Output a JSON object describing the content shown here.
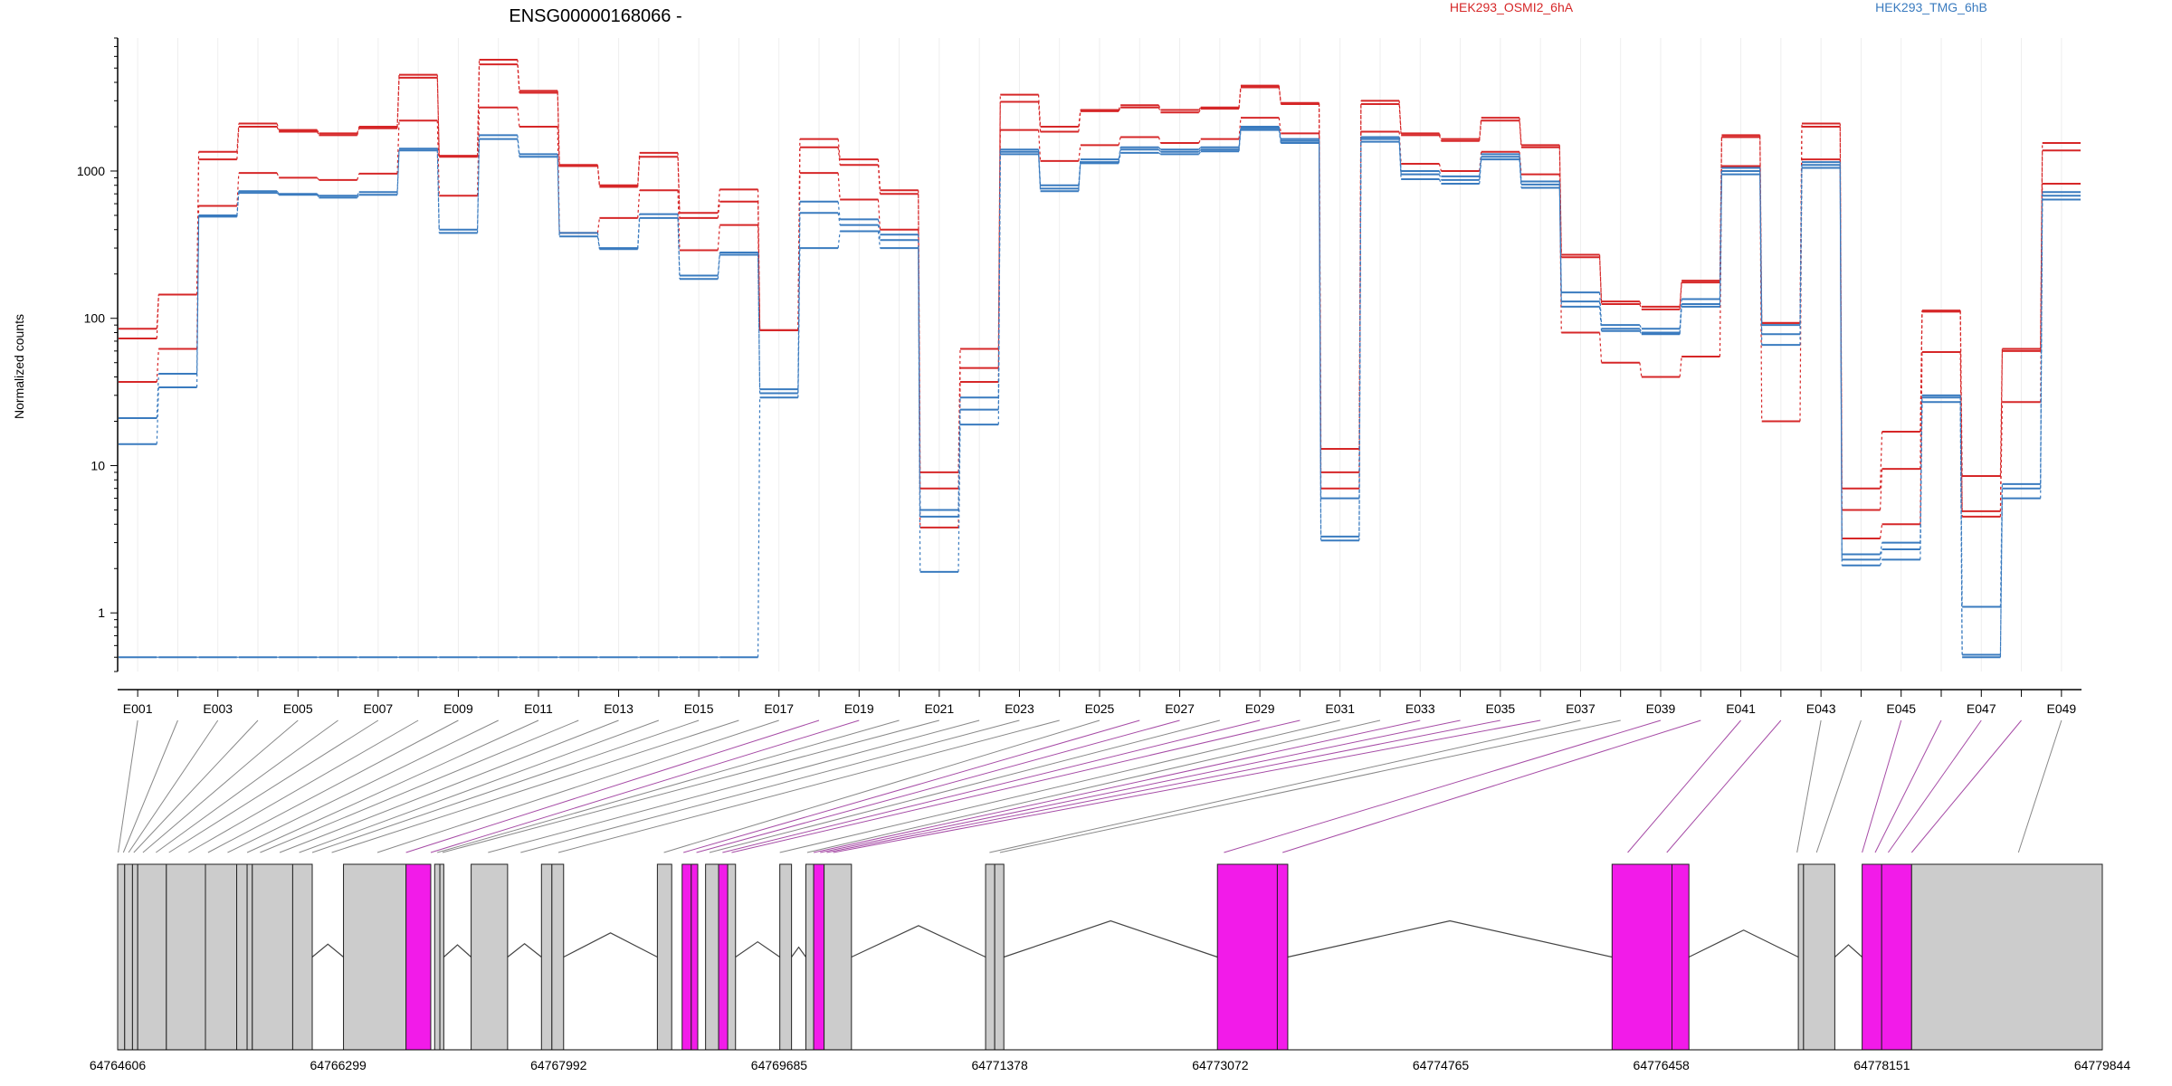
{
  "chart_data": {
    "type": "line",
    "title": "ENSG00000168066 -",
    "ylabel": "Normalized counts",
    "yscale": "log",
    "ylim": [
      0.4,
      8000
    ],
    "y_ticks": [
      1,
      10,
      100,
      1000
    ],
    "y_tick_labels": [
      "1",
      "10",
      "100",
      "1000"
    ],
    "legend_placement": "top",
    "colors": {
      "OSMI2": "#d62728",
      "TMG": "#3a7bbf",
      "highlight_exon": "#f21be9",
      "gene_exon": "#cccccc"
    },
    "categories": [
      "E001",
      "E002",
      "E003",
      "E004",
      "E005",
      "E006",
      "E007",
      "E008",
      "E009",
      "E010",
      "E011",
      "E012",
      "E013",
      "E014",
      "E015",
      "E016",
      "E017",
      "E018",
      "E019",
      "E020",
      "E021",
      "E022",
      "E023",
      "E024",
      "E025",
      "E026",
      "E027",
      "E028",
      "E029",
      "E030",
      "E031",
      "E032",
      "E033",
      "E034",
      "E035",
      "E036",
      "E037",
      "E038",
      "E039",
      "E040",
      "E041",
      "E042",
      "E043",
      "E044",
      "E045",
      "E046",
      "E047",
      "E048",
      "E049"
    ],
    "x_tick_labels": [
      "E001",
      "E003",
      "E005",
      "E007",
      "E009",
      "E011",
      "E013",
      "E015",
      "E017",
      "E019",
      "E021",
      "E023",
      "E025",
      "E027",
      "E029",
      "E031",
      "E033",
      "E035",
      "E037",
      "E039",
      "E041",
      "E043",
      "E045",
      "E047",
      "E049"
    ],
    "legend": [
      {
        "name": "HEK293_OSMI2_6hA",
        "color": "#d62728"
      },
      {
        "name": "HEK293_TMG_6hB",
        "color": "#3a7bbf"
      }
    ],
    "series": [
      {
        "group": "OSMI2",
        "values": [
          85,
          145,
          1350,
          2100,
          1900,
          1800,
          2000,
          4500,
          1270,
          5700,
          3500,
          1100,
          800,
          1330,
          520,
          750,
          83,
          1650,
          1200,
          740,
          9,
          62,
          3300,
          2000,
          2600,
          2800,
          2600,
          2700,
          3800,
          2900,
          13,
          3000,
          1800,
          1650,
          2300,
          1500,
          270,
          130,
          120,
          180,
          1750,
          93,
          2100,
          7,
          17,
          113,
          8.5,
          62,
          1550
        ]
      },
      {
        "group": "OSMI2",
        "values": [
          73,
          145,
          1200,
          2000,
          1850,
          1750,
          1950,
          4300,
          1250,
          5300,
          3400,
          1080,
          780,
          1250,
          480,
          620,
          83,
          1450,
          1100,
          700,
          7,
          46,
          2950,
          1850,
          2550,
          2700,
          2500,
          2650,
          3700,
          2850,
          9,
          2850,
          1750,
          1600,
          2200,
          1450,
          260,
          125,
          115,
          175,
          1700,
          93,
          2000,
          5,
          9.5,
          111,
          4.9,
          60,
          1380
        ]
      },
      {
        "group": "OSMI2",
        "values": [
          37,
          62,
          580,
          970,
          900,
          870,
          960,
          2200,
          680,
          2700,
          2000,
          380,
          480,
          740,
          290,
          430,
          83,
          970,
          640,
          400,
          3.8,
          37,
          1900,
          1170,
          1500,
          1700,
          1550,
          1650,
          2300,
          1800,
          7,
          1850,
          1120,
          1000,
          1350,
          950,
          80,
          50,
          40,
          55,
          1080,
          20,
          1200,
          3.2,
          4,
          59,
          4.5,
          27,
          820
        ]
      },
      {
        "group": "TMG",
        "values": [
          21,
          42,
          500,
          730,
          700,
          680,
          720,
          1420,
          400,
          1750,
          1300,
          380,
          300,
          510,
          195,
          280,
          33,
          620,
          470,
          370,
          5,
          29,
          1400,
          800,
          1200,
          1450,
          1400,
          1450,
          2000,
          1650,
          3.3,
          1700,
          1000,
          920,
          1300,
          850,
          150,
          90,
          85,
          135,
          1050,
          90,
          1150,
          2.5,
          3,
          30,
          1.1,
          7.5,
          720
        ]
      },
      {
        "group": "TMG",
        "values": [
          14,
          34,
          490,
          710,
          690,
          660,
          690,
          1380,
          380,
          1650,
          1250,
          360,
          295,
          480,
          185,
          270,
          31,
          520,
          430,
          340,
          4.5,
          24,
          1350,
          760,
          1150,
          1400,
          1350,
          1400,
          1950,
          1600,
          3.1,
          1650,
          950,
          870,
          1250,
          810,
          130,
          85,
          80,
          125,
          1000,
          78,
          1100,
          2.3,
          2.7,
          29,
          0.52,
          7,
          680
        ]
      },
      {
        "group": "TMG",
        "values": [
          0.5,
          0.5,
          0.5,
          0.5,
          0.5,
          0.5,
          0.5,
          0.5,
          0.5,
          0.5,
          0.5,
          0.5,
          0.5,
          0.5,
          0.5,
          0.5,
          29,
          300,
          390,
          300,
          1.9,
          19,
          1300,
          730,
          1130,
          1330,
          1300,
          1360,
          1900,
          1550,
          6,
          1580,
          880,
          820,
          1200,
          770,
          120,
          82,
          78,
          120,
          950,
          66,
          1050,
          2.1,
          2.3,
          27,
          0.5,
          6,
          640
        ]
      }
    ],
    "gene_axis": {
      "tick_labels": [
        "64764606",
        "64766299",
        "64767992",
        "64769685",
        "64771378",
        "64773072",
        "64774765",
        "64776458",
        "64778151",
        "64779844"
      ],
      "blocks": [
        {
          "s": 64764606,
          "e": 64764660,
          "h": false
        },
        {
          "s": 64764660,
          "e": 64764720,
          "h": false
        },
        {
          "s": 64764720,
          "e": 64764760,
          "h": false
        },
        {
          "s": 64764760,
          "e": 64764980,
          "h": false
        },
        {
          "s": 64764980,
          "e": 64765280,
          "h": false
        },
        {
          "s": 64765280,
          "e": 64765520,
          "h": false
        },
        {
          "s": 64765520,
          "e": 64765600,
          "h": false
        },
        {
          "s": 64765600,
          "e": 64765640,
          "h": false
        },
        {
          "s": 64765640,
          "e": 64765950,
          "h": false
        },
        {
          "s": 64765950,
          "e": 64766100,
          "h": false
        },
        {
          "s": 64766340,
          "e": 64766820,
          "h": false
        },
        {
          "s": 64766820,
          "e": 64767010,
          "h": true
        },
        {
          "s": 64767040,
          "e": 64767080,
          "h": false
        },
        {
          "s": 64767080,
          "e": 64767110,
          "h": false
        },
        {
          "s": 64767320,
          "e": 64767600,
          "h": false
        },
        {
          "s": 64767860,
          "e": 64767940,
          "h": false
        },
        {
          "s": 64767940,
          "e": 64768030,
          "h": false
        },
        {
          "s": 64768750,
          "e": 64768860,
          "h": false
        },
        {
          "s": 64768940,
          "e": 64769010,
          "h": true
        },
        {
          "s": 64769010,
          "e": 64769060,
          "h": true
        },
        {
          "s": 64769120,
          "e": 64769220,
          "h": false
        },
        {
          "s": 64769220,
          "e": 64769290,
          "h": true
        },
        {
          "s": 64769290,
          "e": 64769350,
          "h": false
        },
        {
          "s": 64769900,
          "e": 64769970,
          "h": false
        },
        {
          "s": 64769690,
          "e": 64769780,
          "h": false
        },
        {
          "s": 64769890,
          "e": 64769950,
          "h": false
        },
        {
          "s": 64769950,
          "e": 64770030,
          "h": true
        },
        {
          "s": 64770030,
          "e": 64770240,
          "h": false
        },
        {
          "s": 64771270,
          "e": 64771340,
          "h": false
        },
        {
          "s": 64771340,
          "e": 64771410,
          "h": false
        },
        {
          "s": 64773050,
          "e": 64773510,
          "h": true
        },
        {
          "s": 64773510,
          "e": 64773590,
          "h": true
        },
        {
          "s": 64776080,
          "e": 64776540,
          "h": true
        },
        {
          "s": 64776540,
          "e": 64776670,
          "h": true
        },
        {
          "s": 64777510,
          "e": 64777550,
          "h": false
        },
        {
          "s": 64777550,
          "e": 64777790,
          "h": false
        },
        {
          "s": 64778000,
          "e": 64778150,
          "h": true
        },
        {
          "s": 64778150,
          "e": 64778380,
          "h": true
        },
        {
          "s": 64778380,
          "e": 64779844,
          "h": false
        }
      ],
      "exon_map": [
        [
          64764610,
          false
        ],
        [
          64764650,
          false
        ],
        [
          64764690,
          false
        ],
        [
          64764730,
          false
        ],
        [
          64764800,
          false
        ],
        [
          64764900,
          false
        ],
        [
          64765000,
          false
        ],
        [
          64765150,
          false
        ],
        [
          64765300,
          false
        ],
        [
          64765450,
          false
        ],
        [
          64765600,
          false
        ],
        [
          64765700,
          false
        ],
        [
          64765850,
          false
        ],
        [
          64766000,
          false
        ],
        [
          64766100,
          false
        ],
        [
          64766250,
          false
        ],
        [
          64766600,
          false
        ],
        [
          64766820,
          true
        ],
        [
          64767010,
          true
        ],
        [
          64767060,
          false
        ],
        [
          64767100,
          false
        ],
        [
          64767450,
          false
        ],
        [
          64767700,
          false
        ],
        [
          64767990,
          false
        ],
        [
          64768800,
          false
        ],
        [
          64768950,
          true
        ],
        [
          64769050,
          true
        ],
        [
          64769150,
          false
        ],
        [
          64769250,
          true
        ],
        [
          64769320,
          true
        ],
        [
          64769690,
          false
        ],
        [
          64769900,
          false
        ],
        [
          64769950,
          true
        ],
        [
          64770000,
          true
        ],
        [
          64770050,
          true
        ],
        [
          64770100,
          true
        ],
        [
          64771300,
          false
        ],
        [
          64771380,
          false
        ],
        [
          64773100,
          true
        ],
        [
          64773550,
          true
        ],
        [
          64776200,
          true
        ],
        [
          64776500,
          true
        ],
        [
          64777500,
          false
        ],
        [
          64777650,
          false
        ],
        [
          64778000,
          true
        ],
        [
          64778100,
          true
        ],
        [
          64778200,
          true
        ],
        [
          64778380,
          true
        ],
        [
          64779200,
          false
        ]
      ]
    }
  }
}
